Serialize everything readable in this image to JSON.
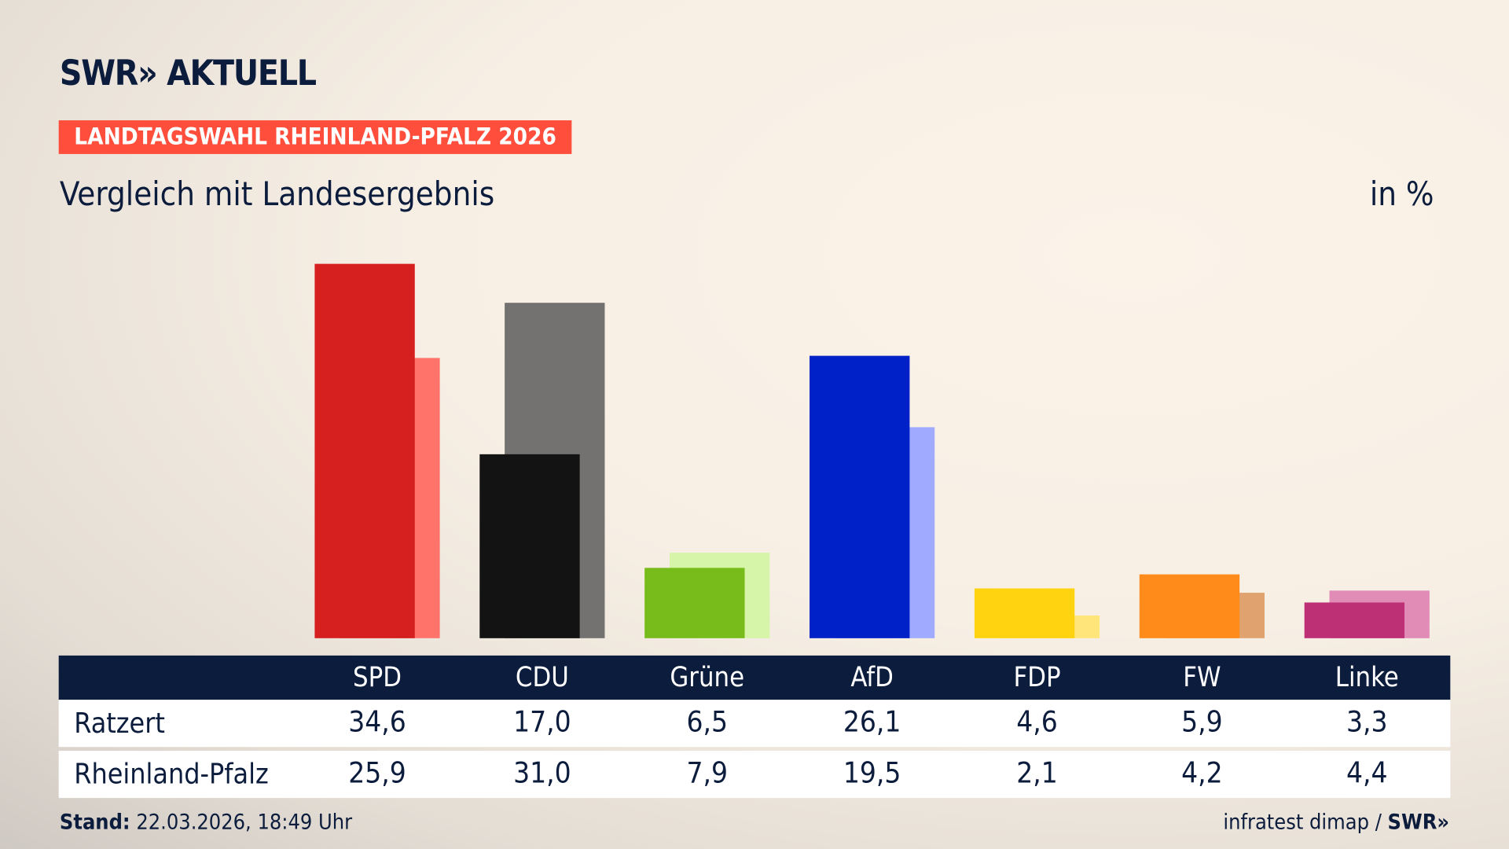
{
  "logo": "SWR» AKTUELL",
  "kicker": "LANDTAGSWAHL RHEINLAND-PFALZ 2026",
  "subtitle": "Vergleich mit Landesergebnis",
  "unit": "in %",
  "footer": {
    "stand_label": "Stand:",
    "stand_value": "22.03.2026, 18:49 Uhr",
    "source": "infratest dimap / ",
    "source_logo": "SWR»"
  },
  "chart_data": {
    "type": "bar",
    "categories": [
      "SPD",
      "CDU",
      "Grüne",
      "AfD",
      "FDP",
      "FW",
      "Linke"
    ],
    "series": [
      {
        "name": "Ratzert",
        "values": [
          34.6,
          17.0,
          6.5,
          26.1,
          4.6,
          5.9,
          3.3
        ],
        "display": [
          "34,6",
          "17,0",
          "6,5",
          "26,1",
          "4,6",
          "5,9",
          "3,3"
        ],
        "colors": [
          "#d61f1f",
          "#131313",
          "#78bc1b",
          "#0021c8",
          "#ffd30f",
          "#ff8c1a",
          "#be3075"
        ]
      },
      {
        "name": "Rheinland-Pfalz",
        "values": [
          25.9,
          31.0,
          7.9,
          19.5,
          2.1,
          4.2,
          4.4
        ],
        "display": [
          "25,9",
          "31,0",
          "7,9",
          "19,5",
          "2,1",
          "4,2",
          "4,4"
        ],
        "colors": [
          "#ff736b",
          "#737270",
          "#d6f5a9",
          "#a0aaff",
          "#ffe57a",
          "#e0a370",
          "#e08cb7"
        ]
      }
    ],
    "unit": "in %"
  }
}
